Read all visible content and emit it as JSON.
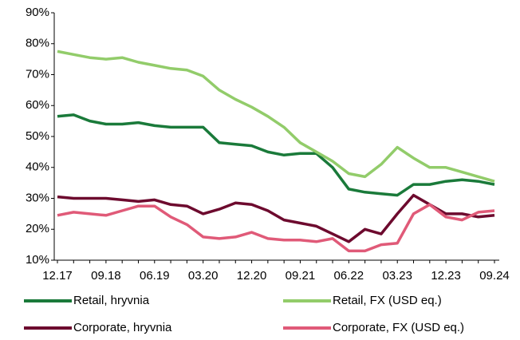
{
  "chart_data": {
    "type": "line",
    "categories": [
      "12.17",
      null,
      null,
      "09.18",
      null,
      null,
      "06.19",
      null,
      null,
      "03.20",
      null,
      null,
      "12.20",
      null,
      null,
      "09.21",
      null,
      null,
      "06.22",
      null,
      null,
      "03.23",
      null,
      null,
      "12.23",
      null,
      null,
      "09.24"
    ],
    "series": [
      {
        "name": "Retail, hryvnia",
        "color": "#1a7a3a",
        "values": [
          56.5,
          57,
          55,
          54,
          54,
          54.5,
          53.5,
          53,
          53,
          53,
          48,
          47.5,
          47,
          45,
          44,
          44.5,
          44.5,
          40,
          33,
          32,
          31.5,
          31,
          34.5,
          34.5,
          35.5,
          36,
          35.5,
          34.5
        ]
      },
      {
        "name": "Retail, FX (USD eq.)",
        "color": "#92cc6a",
        "values": [
          77.5,
          76.5,
          75.5,
          75,
          75.5,
          74,
          73,
          72,
          71.5,
          69.5,
          65,
          62,
          59.5,
          56.5,
          53,
          48,
          45,
          42,
          38,
          37,
          41,
          46.5,
          43,
          40,
          40,
          38.5,
          37,
          35.5
        ]
      },
      {
        "name": "Corporate, hryvnia",
        "color": "#6d0a2e",
        "values": [
          30.5,
          30,
          30,
          30,
          29.5,
          29,
          29.5,
          28,
          27.5,
          25,
          26.5,
          28.5,
          28,
          26,
          23,
          22,
          21,
          18.5,
          16,
          20,
          18.5,
          25,
          31,
          28,
          25,
          25,
          24,
          24.5
        ]
      },
      {
        "name": "Corporate, FX (USD eq.)",
        "color": "#e05a78",
        "values": [
          24.5,
          25.5,
          25,
          24.5,
          26,
          27.5,
          27.5,
          24,
          21.5,
          17.5,
          17,
          17.5,
          19,
          17,
          16.5,
          16.5,
          16,
          17,
          13,
          13,
          15,
          15.5,
          25,
          28,
          24,
          23,
          25.5,
          26
        ]
      }
    ],
    "ylim": [
      10,
      90
    ],
    "yticks": [
      {
        "value": 10,
        "label": "10%"
      },
      {
        "value": 20,
        "label": "20%"
      },
      {
        "value": 30,
        "label": "30%"
      },
      {
        "value": 40,
        "label": "40%"
      },
      {
        "value": 50,
        "label": "50%"
      },
      {
        "value": 60,
        "label": "60%"
      },
      {
        "value": 70,
        "label": "70%"
      },
      {
        "value": 80,
        "label": "80%"
      },
      {
        "value": 90,
        "label": "90%"
      }
    ],
    "grid": false,
    "legend": "bottom"
  }
}
